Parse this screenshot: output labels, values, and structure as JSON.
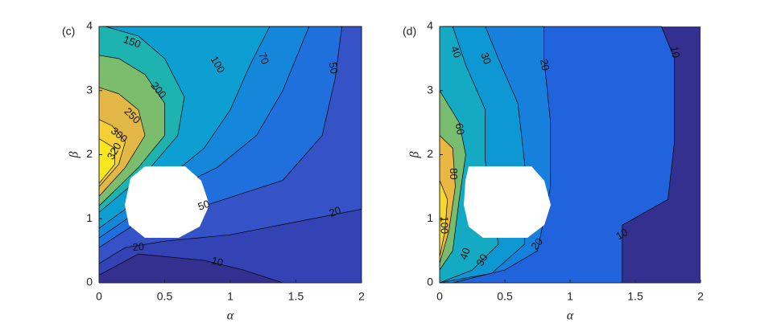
{
  "chart_data": [
    {
      "type": "contour",
      "panel_label": "(c)",
      "xlabel": "α",
      "ylabel": "β",
      "xlim": [
        0,
        2
      ],
      "ylim": [
        0,
        4
      ],
      "xticks": [
        0,
        0.5,
        1,
        1.5,
        2
      ],
      "yticks": [
        0,
        1,
        2,
        3,
        4
      ],
      "base_color": "#33308f",
      "levels": [
        {
          "value": 10,
          "color": "#3343b3",
          "x": [
            0,
            0.3,
            0.8,
            1.1,
            1.4,
            2,
            2,
            0
          ],
          "y": [
            0.12,
            0.45,
            0.35,
            0.2,
            0,
            0,
            4,
            4
          ]
        },
        {
          "value": 20,
          "color": "#3553c6",
          "x": [
            0,
            0.2,
            0.5,
            1.0,
            1.5,
            2,
            2,
            0
          ],
          "y": [
            0.3,
            0.55,
            0.65,
            0.75,
            0.95,
            1.15,
            4,
            4
          ]
        },
        {
          "value": 50,
          "color": "#1f6fdd",
          "x": [
            0,
            0.3,
            0.8,
            1.4,
            1.7,
            1.8,
            1.85,
            0
          ],
          "y": [
            0.55,
            0.95,
            1.2,
            1.6,
            2.3,
            3.2,
            4,
            4
          ]
        },
        {
          "value": 70,
          "color": "#1487db",
          "x": [
            0,
            0.5,
            0.9,
            1.2,
            1.4,
            1.6,
            0
          ],
          "y": [
            0.7,
            1.4,
            1.8,
            2.3,
            3.0,
            4,
            4
          ]
        },
        {
          "value": 100,
          "color": "#0d9fd2",
          "x": [
            0,
            0.5,
            0.8,
            1.0,
            1.15,
            1.3,
            0
          ],
          "y": [
            0.85,
            1.6,
            2.1,
            2.7,
            3.4,
            4,
            4
          ]
        },
        {
          "value": 150,
          "color": "#1db3b0",
          "x": [
            0,
            0.35,
            0.6,
            0.65,
            0.5,
            0.3,
            0.05,
            0
          ],
          "y": [
            1.1,
            1.7,
            2.3,
            2.9,
            3.5,
            3.85,
            4,
            4
          ]
        },
        {
          "value": 200,
          "color": "#7bbd6d",
          "x": [
            0,
            0.3,
            0.5,
            0.5,
            0.35,
            0.15,
            0
          ],
          "y": [
            1.2,
            1.8,
            2.3,
            2.8,
            3.25,
            3.5,
            3.55
          ]
        },
        {
          "value": 250,
          "color": "#e3b745",
          "x": [
            0,
            0.2,
            0.35,
            0.3,
            0.15,
            0
          ],
          "y": [
            1.35,
            1.8,
            2.3,
            2.7,
            2.95,
            3.05
          ]
        },
        {
          "value": 300,
          "color": "#f6cf35",
          "x": [
            0,
            0.15,
            0.2,
            0.1,
            0
          ],
          "y": [
            1.5,
            1.85,
            2.2,
            2.45,
            2.55
          ]
        },
        {
          "value": 320,
          "color": "#f8e61e",
          "x": [
            0,
            0.12,
            0.12,
            0
          ],
          "y": [
            1.55,
            1.85,
            2.1,
            2.25
          ]
        }
      ]
    },
    {
      "type": "contour",
      "panel_label": "(d)",
      "xlabel": "α",
      "ylabel": "β",
      "xlim": [
        0,
        2
      ],
      "ylim": [
        0,
        4
      ],
      "xticks": [
        0,
        0.5,
        1,
        1.5,
        2
      ],
      "yticks": [
        0,
        1,
        2,
        3,
        4
      ],
      "base_color": "#33308f",
      "levels": [
        {
          "value": 10,
          "color": "#2063dd",
          "x": [
            1.4,
            1.4,
            1.75,
            1.8,
            1.8,
            1.7,
            0,
            0
          ],
          "y": [
            0,
            0.9,
            1.3,
            2.2,
            3.5,
            4,
            4,
            0
          ]
        },
        {
          "value": 20,
          "color": "#1680dc",
          "x": [
            0.1,
            0.5,
            0.75,
            0.85,
            0.85,
            0.8,
            0.8,
            0,
            0
          ],
          "y": [
            0,
            0.2,
            0.5,
            1.5,
            2.5,
            3.5,
            4,
            4,
            0
          ]
        },
        {
          "value": 30,
          "color": "#0d98d3",
          "x": [
            0,
            0.4,
            0.65,
            0.65,
            0.6,
            0.45,
            0.35,
            0
          ],
          "y": [
            0,
            0.15,
            0.6,
            1.9,
            2.8,
            3.5,
            4,
            4
          ]
        },
        {
          "value": 40,
          "color": "#15aac4",
          "x": [
            0,
            0.25,
            0.45,
            0.35,
            0.35,
            0.2,
            0.1,
            0
          ],
          "y": [
            0,
            0.2,
            0.6,
            1.9,
            2.7,
            3.4,
            4,
            4
          ]
        },
        {
          "value": 60,
          "color": "#78bc70",
          "x": [
            0,
            0.1,
            0.15,
            0.2,
            0.15,
            0
          ],
          "y": [
            0.2,
            0.5,
            1.3,
            2.0,
            2.5,
            3.0
          ]
        },
        {
          "value": 80,
          "color": "#eab842",
          "x": [
            0,
            0.07,
            0.12,
            0.1,
            0
          ],
          "y": [
            0.3,
            0.8,
            1.5,
            2.1,
            2.3
          ]
        },
        {
          "value": 100,
          "color": "#f6d92a",
          "x": [
            0,
            0.04,
            0.06,
            0
          ],
          "y": [
            0.4,
            0.8,
            1.3,
            1.6
          ]
        }
      ]
    }
  ]
}
